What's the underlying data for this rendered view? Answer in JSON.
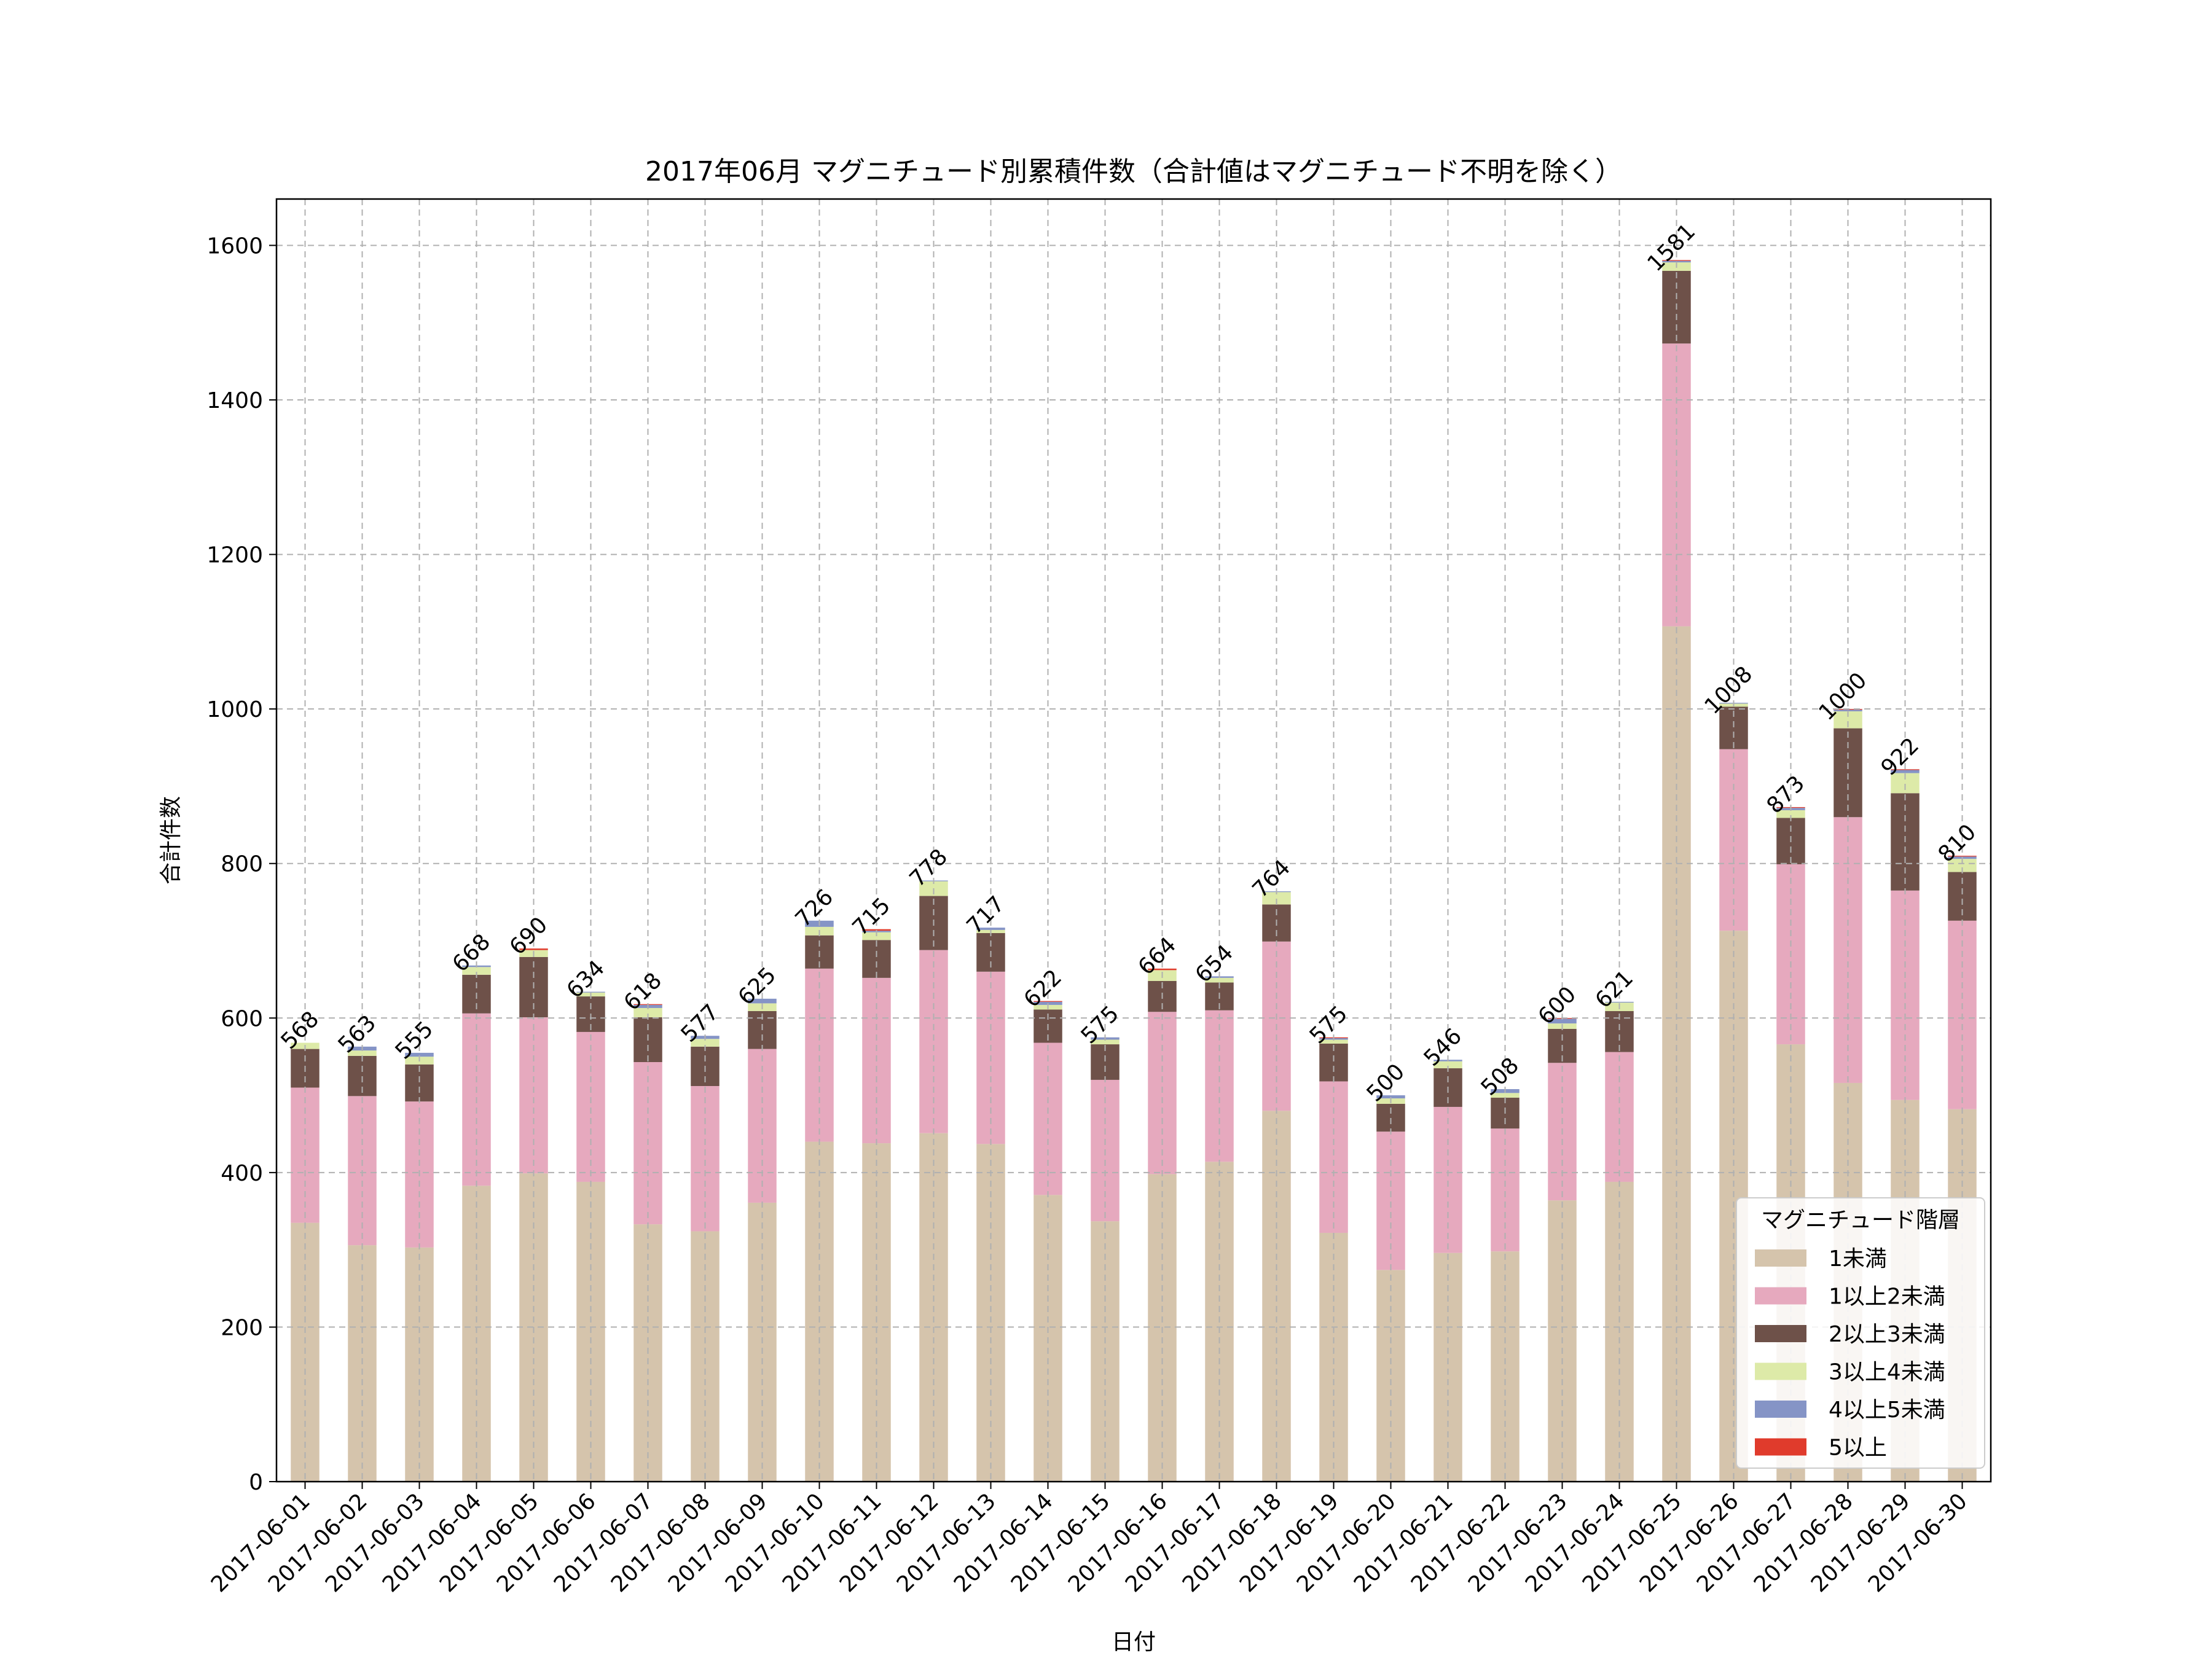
{
  "chart_data": {
    "type": "bar",
    "stacked": true,
    "title": "2017年06月 マグニチュード別累積件数（合計値はマグニチュード不明を除く）",
    "xlabel": "日付",
    "ylabel": "合計件数",
    "ylim": [
      0,
      1660
    ],
    "yticks": [
      0,
      200,
      400,
      600,
      800,
      1000,
      1200,
      1400,
      1600
    ],
    "grid": true,
    "legend_title": "マグニチュード階層",
    "legend_position": "bottom-right",
    "categories": [
      "2017-06-01",
      "2017-06-02",
      "2017-06-03",
      "2017-06-04",
      "2017-06-05",
      "2017-06-06",
      "2017-06-07",
      "2017-06-08",
      "2017-06-09",
      "2017-06-10",
      "2017-06-11",
      "2017-06-12",
      "2017-06-13",
      "2017-06-14",
      "2017-06-15",
      "2017-06-16",
      "2017-06-17",
      "2017-06-18",
      "2017-06-19",
      "2017-06-20",
      "2017-06-21",
      "2017-06-22",
      "2017-06-23",
      "2017-06-24",
      "2017-06-25",
      "2017-06-26",
      "2017-06-27",
      "2017-06-28",
      "2017-06-29",
      "2017-06-30"
    ],
    "totals": [
      568,
      563,
      555,
      668,
      690,
      634,
      618,
      577,
      625,
      726,
      715,
      778,
      717,
      622,
      575,
      664,
      654,
      764,
      575,
      500,
      546,
      508,
      600,
      621,
      1581,
      1008,
      873,
      1000,
      922,
      810
    ],
    "series": [
      {
        "name": "1未満",
        "color": "#d5c4ac",
        "values": [
          335,
          306,
          303,
          383,
          399,
          388,
          333,
          324,
          361,
          440,
          438,
          451,
          437,
          371,
          337,
          398,
          414,
          480,
          322,
          274,
          296,
          298,
          364,
          388,
          1107,
          713,
          566,
          516,
          494,
          482
        ]
      },
      {
        "name": "1以上2未満",
        "color": "#e6a9be",
        "values": [
          175,
          193,
          189,
          223,
          202,
          194,
          210,
          188,
          199,
          224,
          214,
          237,
          223,
          197,
          183,
          210,
          196,
          219,
          196,
          179,
          189,
          159,
          178,
          168,
          366,
          235,
          233,
          344,
          271,
          244
        ]
      },
      {
        "name": "2以上3未満",
        "color": "#6e5149",
        "values": [
          50,
          52,
          48,
          50,
          78,
          46,
          58,
          51,
          49,
          43,
          49,
          70,
          50,
          43,
          46,
          40,
          36,
          48,
          49,
          36,
          50,
          40,
          44,
          53,
          94,
          55,
          60,
          115,
          126,
          63
        ]
      },
      {
        "name": "3以上4未満",
        "color": "#ddeaa8",
        "values": [
          8,
          7,
          10,
          10,
          9,
          5,
          12,
          10,
          10,
          11,
          10,
          19,
          4,
          6,
          6,
          14,
          6,
          16,
          5,
          7,
          9,
          6,
          7,
          11,
          11,
          4,
          10,
          22,
          26,
          17
        ]
      },
      {
        "name": "4以上5未満",
        "color": "#8594c6",
        "values": [
          0,
          5,
          5,
          2,
          0,
          1,
          4,
          4,
          6,
          8,
          2,
          1,
          3,
          4,
          3,
          0,
          2,
          1,
          2,
          4,
          2,
          5,
          6,
          1,
          2,
          1,
          3,
          2,
          4,
          3
        ]
      },
      {
        "name": "5以上",
        "color": "#e03b2c",
        "values": [
          0,
          0,
          0,
          0,
          2,
          0,
          1,
          0,
          0,
          0,
          2,
          0,
          0,
          1,
          0,
          2,
          0,
          0,
          1,
          0,
          0,
          0,
          1,
          0,
          1,
          0,
          1,
          1,
          1,
          1
        ]
      }
    ]
  }
}
